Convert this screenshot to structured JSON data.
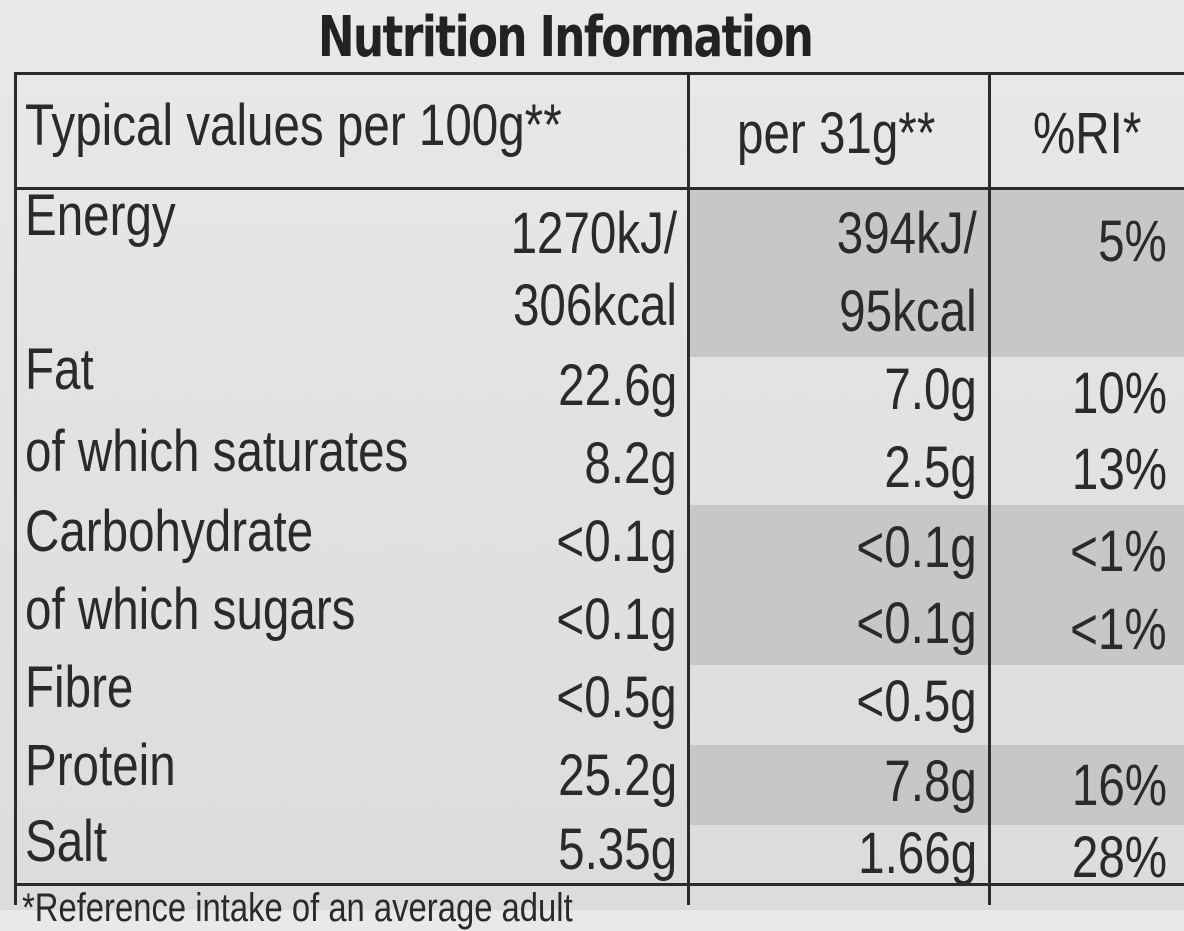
{
  "title": "Nutrition Information",
  "headers": {
    "per100": "Typical values per 100g**",
    "perPortion": "per 31g**",
    "ri": "%RI*"
  },
  "rows": [
    {
      "label": "Energy",
      "per100_line1": "1270kJ/",
      "per100_line2": "306kcal",
      "portion_line1": "394kJ/",
      "portion_line2": "95kcal",
      "ri": "5%"
    },
    {
      "label": "Fat",
      "per100": "22.6g",
      "portion": "7.0g",
      "ri": "10%"
    },
    {
      "label": "of which saturates",
      "per100": "8.2g",
      "portion": "2.5g",
      "ri": "13%"
    },
    {
      "label": "Carbohydrate",
      "per100": "<0.1g",
      "portion": "<0.1g",
      "ri": "<1%"
    },
    {
      "label": "of which sugars",
      "per100": "<0.1g",
      "portion": "<0.1g",
      "ri": "<1%"
    },
    {
      "label": "Fibre",
      "per100": "<0.5g",
      "portion": "<0.5g",
      "ri": ""
    },
    {
      "label": "Protein",
      "per100": "25.2g",
      "portion": "7.8g",
      "ri": "16%"
    },
    {
      "label": "Salt",
      "per100": "5.35g",
      "portion": "1.66g",
      "ri": "28%"
    }
  ],
  "footnote": "*Reference intake of an average adult"
}
